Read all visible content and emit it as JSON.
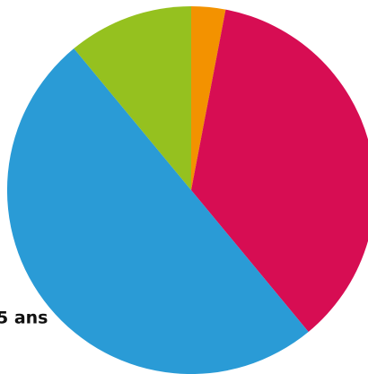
{
  "chart_data": {
    "type": "pie",
    "categories": [
      null,
      null,
      null,
      null
    ],
    "values": [
      3,
      36,
      50,
      11
    ],
    "colors": [
      "#f39200",
      "#d70d53",
      "#2a9bd6",
      "#95c11f"
    ],
    "annotations": [
      "5 ans"
    ]
  }
}
